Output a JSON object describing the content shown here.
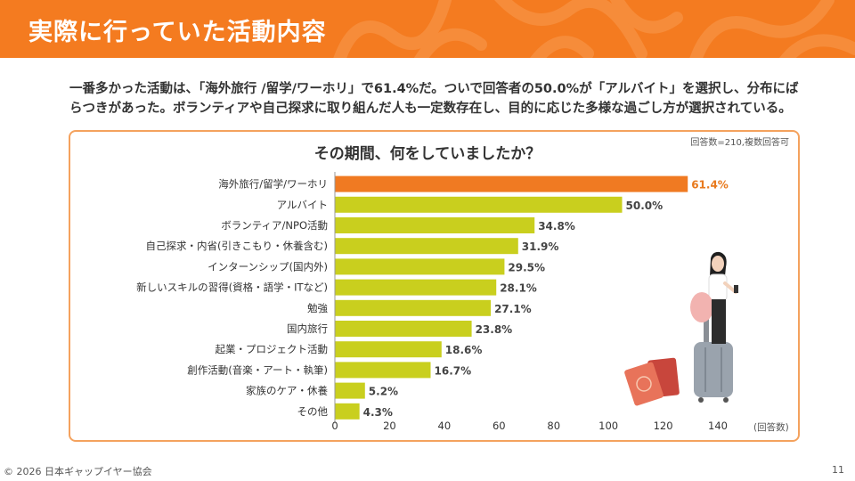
{
  "header": {
    "title": "実際に行っていた活動内容"
  },
  "summary": {
    "line1": "一番多かった活動は、「海外旅行 /留学/ワーホリ」で61.4%だ。ついで回答者の50.0%が「アルバイト」を選択し、分布にば",
    "line2": "らつきがあった。ボランティアや自己探求に取り組んだ人も一定数存在し、目的に応じた多様な過ごし方が選択されている。"
  },
  "note": "回答数=210,複数回答可",
  "footer": {
    "copyright": "© 2026 日本ギャップイヤー協会",
    "page": "11"
  },
  "colors": {
    "header": "#f47b20",
    "highlight_bar": "#f07a22",
    "bar": "#c9cf1e",
    "highlight_label": "#e87a1e"
  },
  "chart_data": {
    "type": "bar",
    "orientation": "horizontal",
    "title": "その期間、何をしていましたか？",
    "xlabel": "(回答数)",
    "xlim": [
      0,
      140
    ],
    "xticks": [
      0,
      20,
      40,
      60,
      80,
      100,
      120,
      140
    ],
    "categories": [
      "海外旅行/留学/ワーホリ",
      "アルバイト",
      "ボランティア/NPO活動",
      "自己探求・内省(引きこもり・休養含む)",
      "インターンシップ(国内外)",
      "新しいスキルの習得(資格・語学・ITなど)",
      "勉強",
      "国内旅行",
      "起業・プロジェクト活動",
      "創作活動(音楽・アート・執筆)",
      "家族のケア・休養",
      "その他"
    ],
    "values": [
      129,
      105,
      73,
      67,
      62,
      59,
      57,
      50,
      39,
      35,
      11,
      9
    ],
    "percent_labels": [
      "61.4%",
      "50.0%",
      "34.8%",
      "31.9%",
      "29.5%",
      "28.1%",
      "27.1%",
      "23.8%",
      "18.6%",
      "16.7%",
      "5.2%",
      "4.3%"
    ],
    "highlight_index": 0,
    "grid": false
  }
}
